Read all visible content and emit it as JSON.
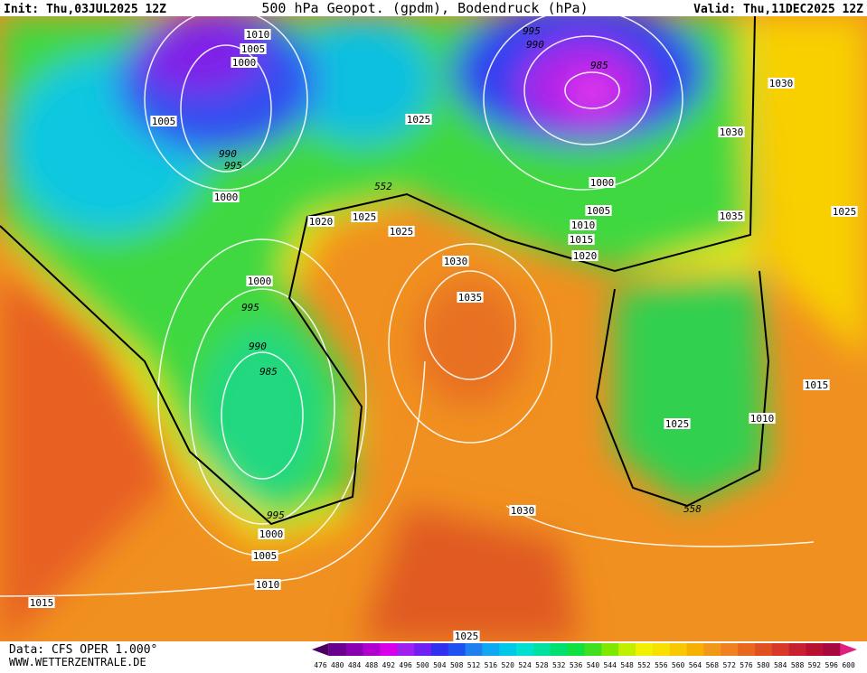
{
  "header": {
    "init": "Init: Thu,03JUL2025 12Z",
    "title": "500 hPa Geopot. (gpdm), Bodendruck (hPa)",
    "valid": "Valid: Thu,11DEC2025 12Z"
  },
  "isobar_labels": [
    "1010",
    "1005",
    "1000",
    "1005",
    "990",
    "995",
    "1000",
    "995",
    "990",
    "985",
    "1025",
    "1030",
    "1030",
    "552",
    "1020",
    "1025",
    "1025",
    "1000",
    "1005",
    "1010",
    "1015",
    "1020",
    "1035",
    "1025",
    "1030",
    "1000",
    "995",
    "1035",
    "990",
    "985",
    "1015",
    "1010",
    "1025",
    "995",
    "1000",
    "1005",
    "1010",
    "1015",
    "1030",
    "558",
    "1025"
  ],
  "footer": {
    "data": "Data: CFS OPER 1.000°",
    "site": "WWW.WETTERZENTRALE.DE"
  },
  "scale": {
    "labels": [
      476,
      480,
      484,
      488,
      492,
      496,
      500,
      504,
      508,
      512,
      516,
      520,
      524,
      528,
      532,
      536,
      540,
      544,
      548,
      552,
      556,
      560,
      564,
      568,
      572,
      576,
      580,
      584,
      588,
      592,
      596,
      600
    ],
    "colors": [
      "#4a0060",
      "#6a0090",
      "#8a00b0",
      "#b000d0",
      "#d800e8",
      "#a020f0",
      "#7020f0",
      "#3030f0",
      "#2050f0",
      "#2080f0",
      "#10a8f0",
      "#00c8e8",
      "#00e0d0",
      "#00e0a0",
      "#00e070",
      "#10e040",
      "#40e020",
      "#80e800",
      "#c0f000",
      "#f0f000",
      "#f8e000",
      "#f8c800",
      "#f8b000",
      "#f09818",
      "#f08020",
      "#e86820",
      "#e05020",
      "#d83828",
      "#c82030",
      "#b81030",
      "#a80840",
      "#e02080"
    ]
  }
}
